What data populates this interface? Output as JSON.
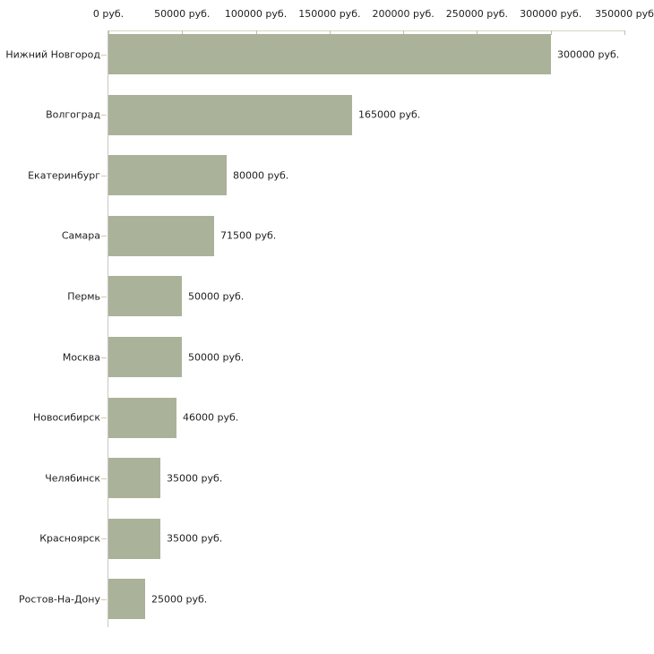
{
  "chart_data": {
    "type": "bar",
    "orientation": "horizontal",
    "title": "",
    "xlabel": "",
    "ylabel": "",
    "xlim": [
      0,
      350000
    ],
    "grid": false,
    "legend": false,
    "x_ticks": [
      {
        "value": 0,
        "label": "0 руб."
      },
      {
        "value": 50000,
        "label": "50000 руб."
      },
      {
        "value": 100000,
        "label": "100000 руб."
      },
      {
        "value": 150000,
        "label": "150000 руб."
      },
      {
        "value": 200000,
        "label": "200000 руб."
      },
      {
        "value": 250000,
        "label": "250000 руб."
      },
      {
        "value": 300000,
        "label": "300000 руб."
      },
      {
        "value": 350000,
        "label": "350000 руб"
      }
    ],
    "categories": [
      "Нижний Новгород",
      "Волгоград",
      "Екатеринбург",
      "Самара",
      "Пермь",
      "Москва",
      "Новосибирск",
      "Челябинск",
      "Красноярск",
      "Ростов-На-Дону"
    ],
    "values": [
      300000,
      165000,
      80000,
      71500,
      50000,
      50000,
      46000,
      35000,
      35000,
      25000
    ],
    "value_labels": [
      "300000 руб.",
      "165000 руб.",
      "80000 руб.",
      "71500 руб.",
      "50000 руб.",
      "50000 руб.",
      "46000 руб.",
      "35000 руб.",
      "35000 руб.",
      "25000 руб."
    ],
    "colors": {
      "bar_fill": "#aab29a",
      "x_axis_line": "#d8d5bd",
      "x_tick_mark": "#c2bf9a",
      "category_tick": "#cfcdaa",
      "y_axis_line": "#c8c8c3",
      "text": "#1e1e1e"
    }
  }
}
